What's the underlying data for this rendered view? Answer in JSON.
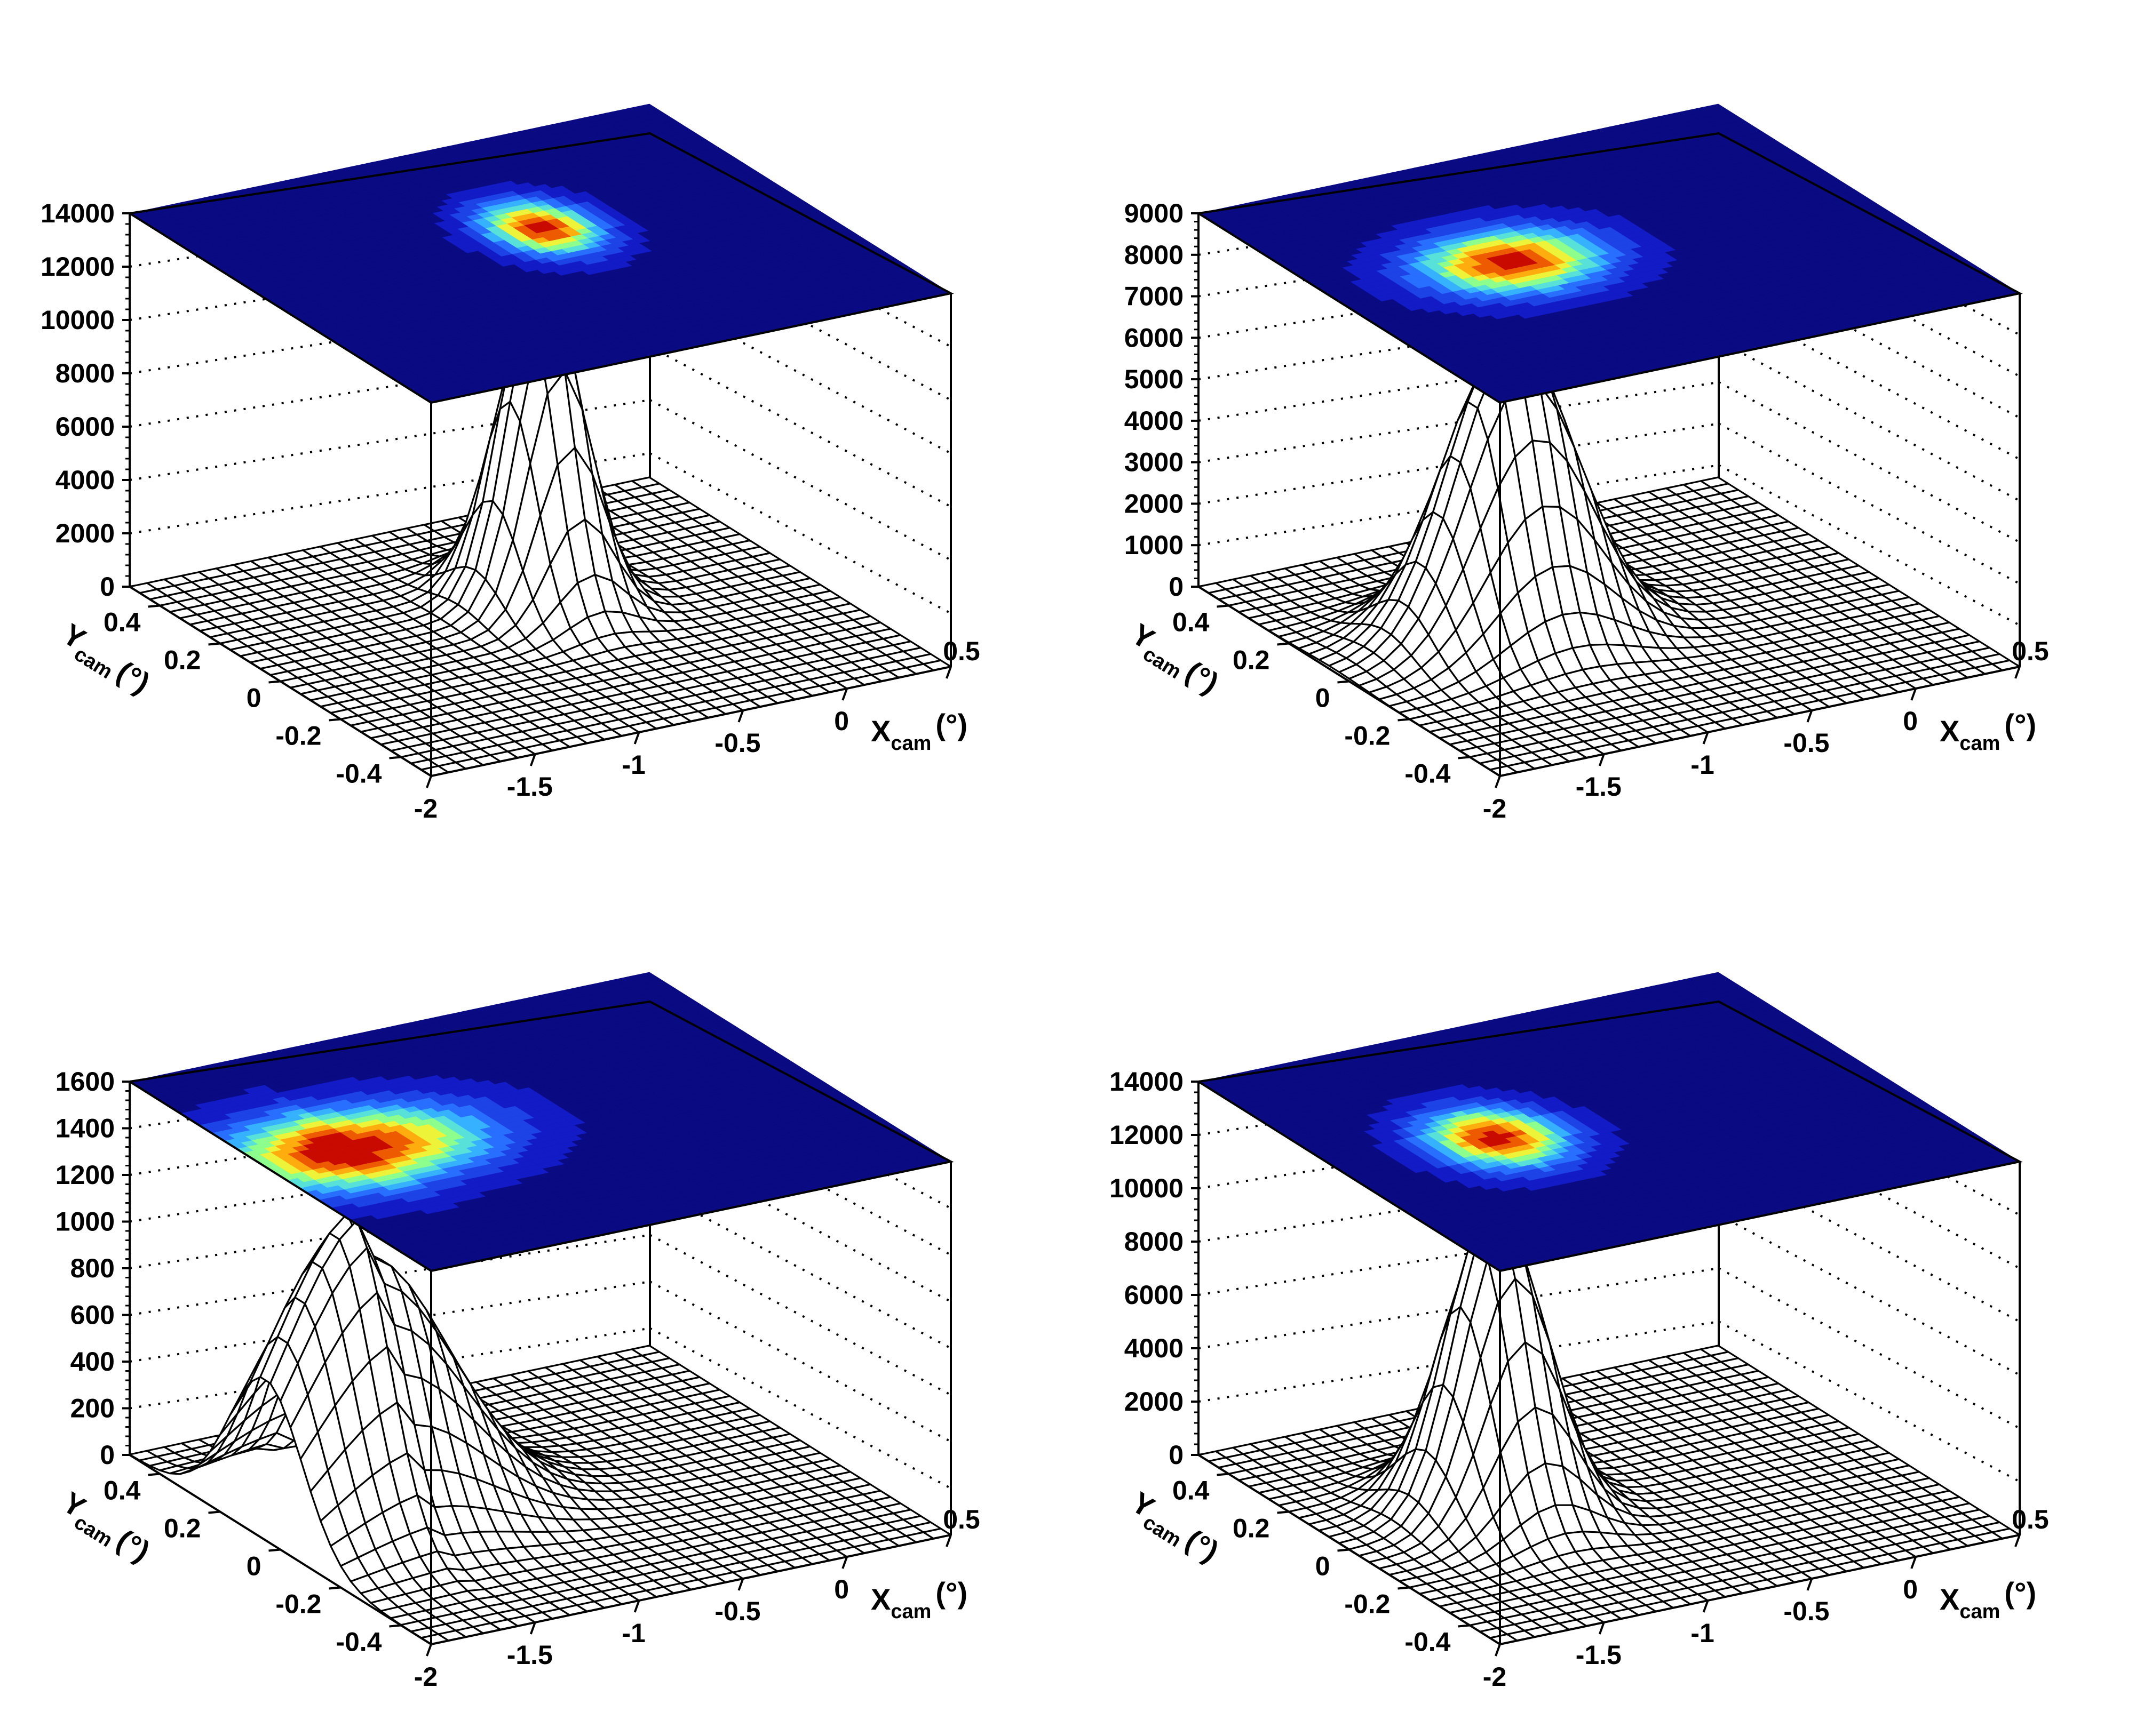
{
  "figure": {
    "panels_layout": "2x2 grid"
  },
  "chart_data": [
    {
      "type": "surface3d",
      "panel": "top-left",
      "x_label": {
        "main": "X",
        "sub": "cam",
        "unit": "(°)"
      },
      "y_label": {
        "main": "Y",
        "sub": "cam",
        "unit": "(°)"
      },
      "x_ticks": [
        "-2",
        "-1.5",
        "-1",
        "-0.5",
        "0",
        "0.5"
      ],
      "y_ticks": [
        "-0.4",
        "-0.2",
        "0",
        "0.2",
        "0.4"
      ],
      "z_ticks": [
        "0",
        "2000",
        "4000",
        "6000",
        "8000",
        "10000",
        "12000",
        "14000"
      ],
      "xlim": [
        -2,
        0.5
      ],
      "ylim": [
        -0.5,
        0.5
      ],
      "zlim": [
        0,
        14000
      ],
      "peak": {
        "x": -0.6,
        "y": 0.1,
        "z": 12000
      },
      "sigma": {
        "x": 0.16,
        "y": 0.09
      },
      "tail": false,
      "top_projection": "color map (blue background, red peak)",
      "grid": true
    },
    {
      "type": "surface3d",
      "panel": "top-right",
      "x_label": {
        "main": "X",
        "sub": "cam",
        "unit": "(°)"
      },
      "y_label": {
        "main": "Y",
        "sub": "cam",
        "unit": "(°)"
      },
      "x_ticks": [
        "-2",
        "-1.5",
        "-1",
        "-0.5",
        "0",
        "0.5"
      ],
      "y_ticks": [
        "-0.4",
        "-0.2",
        "0",
        "0.2",
        "0.4"
      ],
      "z_ticks": [
        "0",
        "1000",
        "2000",
        "3000",
        "4000",
        "5000",
        "6000",
        "7000",
        "8000",
        "9000"
      ],
      "xlim": [
        -2,
        0.5
      ],
      "ylim": [
        -0.5,
        0.5
      ],
      "zlim": [
        0,
        9000
      ],
      "peak": {
        "x": -1.15,
        "y": 0.05,
        "z": 7200
      },
      "sigma": {
        "x": 0.28,
        "y": 0.1
      },
      "tail": false,
      "top_projection": "color map (blue background, red peak)",
      "grid": true
    },
    {
      "type": "surface3d",
      "panel": "bottom-left",
      "x_label": {
        "main": "X",
        "sub": "cam",
        "unit": "(°)"
      },
      "y_label": {
        "main": "Y",
        "sub": "cam",
        "unit": "(°)"
      },
      "x_ticks": [
        "-2",
        "-1.5",
        "-1",
        "-0.5",
        "0",
        "0.5"
      ],
      "y_ticks": [
        "-0.4",
        "-0.2",
        "0",
        "0.2",
        "0.4"
      ],
      "z_ticks": [
        "0",
        "200",
        "400",
        "600",
        "800",
        "1000",
        "1200",
        "1400",
        "1600"
      ],
      "xlim": [
        -2,
        0.5
      ],
      "ylim": [
        -0.5,
        0.5
      ],
      "zlim": [
        0,
        1600
      ],
      "peak": {
        "x": -1.55,
        "y": 0.05,
        "z": 1150
      },
      "sigma": {
        "x": 0.4,
        "y": 0.12
      },
      "tail": true,
      "top_projection": "color map (blue background, red peak)",
      "grid": true
    },
    {
      "type": "surface3d",
      "panel": "bottom-right",
      "x_label": {
        "main": "X",
        "sub": "cam",
        "unit": "(°)"
      },
      "y_label": {
        "main": "Y",
        "sub": "cam",
        "unit": "(°)"
      },
      "x_ticks": [
        "-2",
        "-1.5",
        "-1",
        "-0.5",
        "0",
        "0.5"
      ],
      "y_ticks": [
        "-0.4",
        "-0.2",
        "0",
        "0.2",
        "0.4"
      ],
      "z_ticks": [
        "0",
        "2000",
        "4000",
        "6000",
        "8000",
        "10000",
        "12000",
        "14000"
      ],
      "xlim": [
        -2,
        0.5
      ],
      "ylim": [
        -0.5,
        0.5
      ],
      "zlim": [
        0,
        14000
      ],
      "peak": {
        "x": -1.25,
        "y": 0.03,
        "z": 11200
      },
      "sigma": {
        "x": 0.2,
        "y": 0.1
      },
      "tail": false,
      "top_projection": "color map (blue background, red peak)",
      "grid": true
    }
  ]
}
